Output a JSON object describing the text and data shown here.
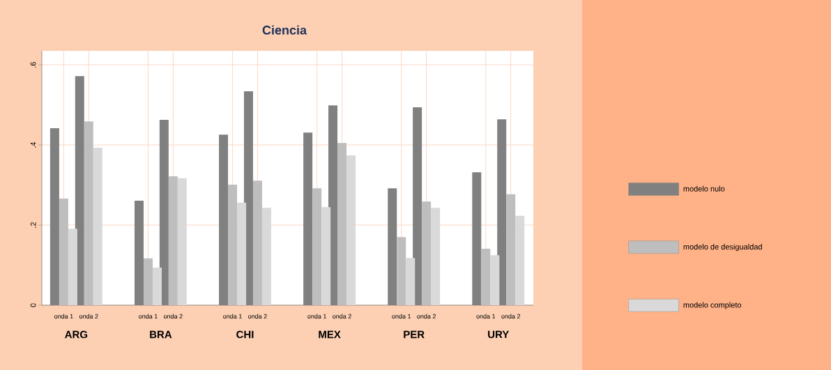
{
  "chart_data": {
    "type": "bar",
    "title": "Ciencia",
    "categories": [
      "onda 1",
      "onda 2",
      "onda 1",
      "onda 2",
      "onda 1",
      "onda 2",
      "onda 1",
      "onda 2",
      "onda 1",
      "onda 2",
      "onda 1",
      "onda 2"
    ],
    "series": [
      {
        "name": "modelo nulo",
        "color": "#808080",
        "values": [
          0.442,
          0.572,
          0.261,
          0.463,
          0.426,
          0.534,
          0.431,
          0.499,
          0.292,
          0.494,
          0.332,
          0.464
        ]
      },
      {
        "name": "modelo de desigualdad",
        "color": "#bebebe",
        "values": [
          0.266,
          0.459,
          0.117,
          0.322,
          0.301,
          0.311,
          0.292,
          0.405,
          0.17,
          0.259,
          0.141,
          0.277
        ]
      },
      {
        "name": "modelo completo",
        "color": "#d9d9d9",
        "values": [
          0.191,
          0.393,
          0.094,
          0.317,
          0.256,
          0.243,
          0.245,
          0.374,
          0.118,
          0.243,
          0.125,
          0.223
        ]
      }
    ],
    "annotations": [
      "ARG",
      "BRA",
      "CHI",
      "MEX",
      "PER",
      "URY"
    ],
    "ylim": [
      0,
      0.635
    ],
    "yticks": [
      0,
      {
        "value": 0.2,
        "label": ".2"
      },
      {
        "value": 0.4,
        "label": ".4"
      },
      {
        "value": 0.6,
        "label": ".6"
      }
    ],
    "grid": true,
    "legend": "right"
  }
}
